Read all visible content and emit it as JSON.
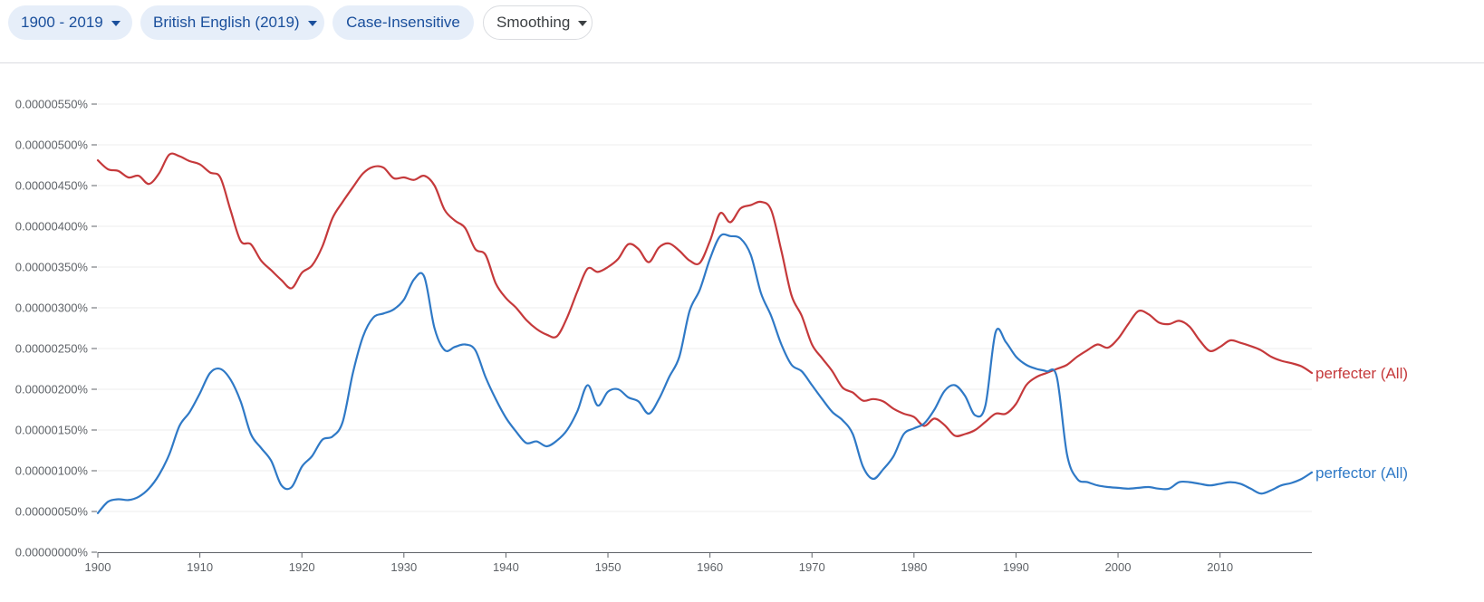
{
  "toolbar": {
    "years": "1900 - 2019",
    "corpus": "British English (2019)",
    "case": "Case-Insensitive",
    "smoothing": "Smoothing"
  },
  "colors": {
    "perfecter": "#c5393b",
    "perfector": "#2f79c6",
    "chip_bg": "#e6eef9",
    "chip_text": "#1a4f9c",
    "axis": "#5f6368",
    "grid": "#eeeeee"
  },
  "chart_data": {
    "type": "line",
    "title": "",
    "xlabel": "",
    "ylabel": "",
    "xlim": [
      1900,
      2019
    ],
    "ylim": [
      0,
      5.5e-06
    ],
    "yticks": [
      {
        "value": 0.0,
        "label": "0.00000000%"
      },
      {
        "value": 5e-07,
        "label": "0.00000050%"
      },
      {
        "value": 1e-06,
        "label": "0.00000100%"
      },
      {
        "value": 1.5e-06,
        "label": "0.00000150%"
      },
      {
        "value": 2e-06,
        "label": "0.00000200%"
      },
      {
        "value": 2.5e-06,
        "label": "0.00000250%"
      },
      {
        "value": 3e-06,
        "label": "0.00000300%"
      },
      {
        "value": 3.5e-06,
        "label": "0.00000350%"
      },
      {
        "value": 4e-06,
        "label": "0.00000400%"
      },
      {
        "value": 4.5e-06,
        "label": "0.00000450%"
      },
      {
        "value": 5e-06,
        "label": "0.00000500%"
      },
      {
        "value": 5.5e-06,
        "label": "0.00000550%"
      }
    ],
    "xticks": [
      {
        "value": 1900,
        "label": "1900"
      },
      {
        "value": 1910,
        "label": "1910"
      },
      {
        "value": 1920,
        "label": "1920"
      },
      {
        "value": 1930,
        "label": "1930"
      },
      {
        "value": 1940,
        "label": "1940"
      },
      {
        "value": 1950,
        "label": "1950"
      },
      {
        "value": 1960,
        "label": "1960"
      },
      {
        "value": 1970,
        "label": "1970"
      },
      {
        "value": 1980,
        "label": "1980"
      },
      {
        "value": 1990,
        "label": "1990"
      },
      {
        "value": 2000,
        "label": "2000"
      },
      {
        "value": 2010,
        "label": "2010"
      }
    ],
    "series": [
      {
        "name": "perfecter (All)",
        "key": "perfecter",
        "x": [
          1900,
          1901,
          1902,
          1903,
          1904,
          1905,
          1906,
          1907,
          1908,
          1909,
          1910,
          1911,
          1912,
          1913,
          1914,
          1915,
          1916,
          1917,
          1918,
          1919,
          1920,
          1921,
          1922,
          1923,
          1924,
          1925,
          1926,
          1927,
          1928,
          1929,
          1930,
          1931,
          1932,
          1933,
          1934,
          1935,
          1936,
          1937,
          1938,
          1939,
          1940,
          1941,
          1942,
          1943,
          1944,
          1945,
          1946,
          1947,
          1948,
          1949,
          1950,
          1951,
          1952,
          1953,
          1954,
          1955,
          1956,
          1957,
          1958,
          1959,
          1960,
          1961,
          1962,
          1963,
          1964,
          1965,
          1966,
          1967,
          1968,
          1969,
          1970,
          1971,
          1972,
          1973,
          1974,
          1975,
          1976,
          1977,
          1978,
          1979,
          1980,
          1981,
          1982,
          1983,
          1984,
          1985,
          1986,
          1987,
          1988,
          1989,
          1990,
          1991,
          1992,
          1993,
          1994,
          1995,
          1996,
          1997,
          1998,
          1999,
          2000,
          2001,
          2002,
          2003,
          2004,
          2005,
          2006,
          2007,
          2008,
          2009,
          2010,
          2011,
          2012,
          2013,
          2014,
          2015,
          2016,
          2017,
          2018,
          2019
        ],
        "values": [
          4.81e-06,
          4.7e-06,
          4.68e-06,
          4.6e-06,
          4.62e-06,
          4.52e-06,
          4.65e-06,
          4.88e-06,
          4.86e-06,
          4.8e-06,
          4.76e-06,
          4.66e-06,
          4.6e-06,
          4.2e-06,
          3.82e-06,
          3.78e-06,
          3.58e-06,
          3.46e-06,
          3.34e-06,
          3.24e-06,
          3.43e-06,
          3.52e-06,
          3.75e-06,
          4.1e-06,
          4.3e-06,
          4.48e-06,
          4.65e-06,
          4.73e-06,
          4.72e-06,
          4.59e-06,
          4.6e-06,
          4.57e-06,
          4.62e-06,
          4.5e-06,
          4.2e-06,
          4.07e-06,
          3.98e-06,
          3.72e-06,
          3.65e-06,
          3.3e-06,
          3.12e-06,
          3e-06,
          2.85e-06,
          2.74e-06,
          2.67e-06,
          2.65e-06,
          2.88e-06,
          3.2e-06,
          3.48e-06,
          3.44e-06,
          3.5e-06,
          3.6e-06,
          3.78e-06,
          3.72e-06,
          3.56e-06,
          3.74e-06,
          3.79e-06,
          3.7e-06,
          3.58e-06,
          3.55e-06,
          3.82e-06,
          4.16e-06,
          4.05e-06,
          4.22e-06,
          4.26e-06,
          4.3e-06,
          4.2e-06,
          3.7e-06,
          3.15e-06,
          2.9e-06,
          2.55e-06,
          2.38e-06,
          2.22e-06,
          2.02e-06,
          1.96e-06,
          1.86e-06,
          1.88e-06,
          1.85e-06,
          1.76e-06,
          1.7e-06,
          1.66e-06,
          1.55e-06,
          1.64e-06,
          1.56e-06,
          1.43e-06,
          1.45e-06,
          1.5e-06,
          1.6e-06,
          1.7e-06,
          1.7e-06,
          1.82e-06,
          2.05e-06,
          2.15e-06,
          2.2e-06,
          2.25e-06,
          2.3e-06,
          2.4e-06,
          2.48e-06,
          2.55e-06,
          2.51e-06,
          2.62e-06,
          2.8e-06,
          2.96e-06,
          2.92e-06,
          2.82e-06,
          2.8e-06,
          2.84e-06,
          2.77e-06,
          2.6e-06,
          2.47e-06,
          2.52e-06,
          2.6e-06,
          2.57e-06,
          2.53e-06,
          2.48e-06,
          2.4e-06,
          2.35e-06,
          2.32e-06,
          2.28e-06,
          2.2e-06
        ]
      },
      {
        "name": "perfector (All)",
        "key": "perfector",
        "x": [
          1900,
          1901,
          1902,
          1903,
          1904,
          1905,
          1906,
          1907,
          1908,
          1909,
          1910,
          1911,
          1912,
          1913,
          1914,
          1915,
          1916,
          1917,
          1918,
          1919,
          1920,
          1921,
          1922,
          1923,
          1924,
          1925,
          1926,
          1927,
          1928,
          1929,
          1930,
          1931,
          1932,
          1933,
          1934,
          1935,
          1936,
          1937,
          1938,
          1939,
          1940,
          1941,
          1942,
          1943,
          1944,
          1945,
          1946,
          1947,
          1948,
          1949,
          1950,
          1951,
          1952,
          1953,
          1954,
          1955,
          1956,
          1957,
          1958,
          1959,
          1960,
          1961,
          1962,
          1963,
          1964,
          1965,
          1966,
          1967,
          1968,
          1969,
          1970,
          1971,
          1972,
          1973,
          1974,
          1975,
          1976,
          1977,
          1978,
          1979,
          1980,
          1981,
          1982,
          1983,
          1984,
          1985,
          1986,
          1987,
          1988,
          1989,
          1990,
          1991,
          1992,
          1993,
          1994,
          1995,
          1996,
          1997,
          1998,
          1999,
          2000,
          2001,
          2002,
          2003,
          2004,
          2005,
          2006,
          2007,
          2008,
          2009,
          2010,
          2011,
          2012,
          2013,
          2014,
          2015,
          2016,
          2017,
          2018,
          2019
        ],
        "values": [
          4.8e-07,
          6.2e-07,
          6.5e-07,
          6.4e-07,
          6.8e-07,
          7.8e-07,
          9.5e-07,
          1.2e-06,
          1.55e-06,
          1.72e-06,
          1.95e-06,
          2.2e-06,
          2.25e-06,
          2.12e-06,
          1.85e-06,
          1.45e-06,
          1.28e-06,
          1.12e-06,
          8.2e-07,
          8e-07,
          1.05e-06,
          1.18e-06,
          1.38e-06,
          1.42e-06,
          1.6e-06,
          2.2e-06,
          2.65e-06,
          2.88e-06,
          2.93e-06,
          2.98e-06,
          3.1e-06,
          3.35e-06,
          3.38e-06,
          2.75e-06,
          2.48e-06,
          2.52e-06,
          2.55e-06,
          2.48e-06,
          2.15e-06,
          1.88e-06,
          1.65e-06,
          1.48e-06,
          1.34e-06,
          1.36e-06,
          1.3e-06,
          1.37e-06,
          1.5e-06,
          1.73e-06,
          2.05e-06,
          1.8e-06,
          1.97e-06,
          2e-06,
          1.9e-06,
          1.85e-06,
          1.7e-06,
          1.88e-06,
          2.15e-06,
          2.4e-06,
          2.96e-06,
          3.22e-06,
          3.6e-06,
          3.88e-06,
          3.88e-06,
          3.85e-06,
          3.65e-06,
          3.18e-06,
          2.9e-06,
          2.55e-06,
          2.3e-06,
          2.22e-06,
          2.05e-06,
          1.88e-06,
          1.72e-06,
          1.62e-06,
          1.45e-06,
          1.05e-06,
          9e-07,
          1.02e-06,
          1.18e-06,
          1.45e-06,
          1.52e-06,
          1.58e-06,
          1.75e-06,
          1.98e-06,
          2.05e-06,
          1.92e-06,
          1.68e-06,
          1.8e-06,
          2.7e-06,
          2.58e-06,
          2.4e-06,
          2.3e-06,
          2.25e-06,
          2.22e-06,
          2.15e-06,
          1.2e-06,
          9e-07,
          8.6e-07,
          8.2e-07,
          8e-07,
          7.9e-07,
          7.8e-07,
          7.9e-07,
          8e-07,
          7.8e-07,
          7.8e-07,
          8.6e-07,
          8.6e-07,
          8.4e-07,
          8.2e-07,
          8.4e-07,
          8.6e-07,
          8.4e-07,
          7.8e-07,
          7.2e-07,
          7.6e-07,
          8.2e-07,
          8.5e-07,
          9e-07,
          9.8e-07
        ]
      }
    ]
  }
}
